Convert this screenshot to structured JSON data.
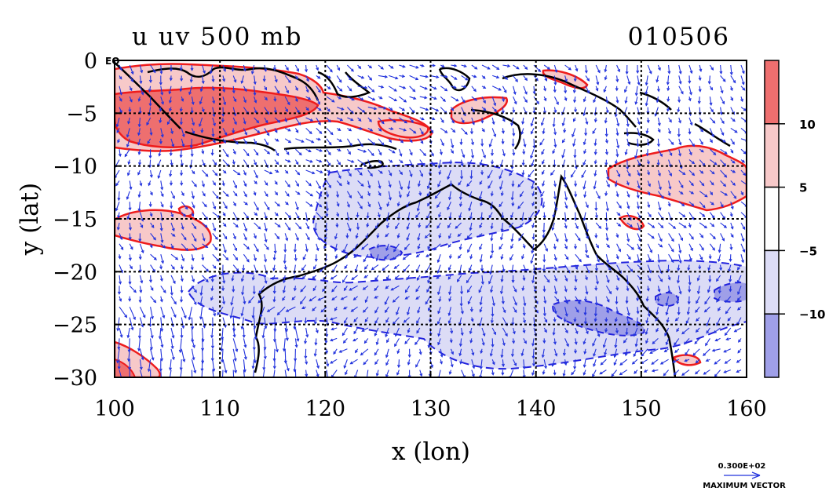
{
  "chart_data": {
    "type": "contour",
    "title": "u uv 500 mb",
    "date_label": "010506",
    "xlabel": "x (lon)",
    "ylabel": "y (lat)",
    "xlim": [
      100,
      160
    ],
    "ylim": [
      -30,
      0
    ],
    "x_ticks": [
      100,
      110,
      120,
      130,
      140,
      150,
      160
    ],
    "y_ticks": [
      0,
      -5,
      -10,
      -15,
      -20,
      -25,
      -30
    ],
    "y_tick_labels": [
      "0",
      "−5",
      "−10",
      "−15",
      "−20",
      "−25",
      "−30"
    ],
    "eq_label": "EQ",
    "grid": true,
    "colorbar": {
      "ticks": [
        10,
        5,
        -5,
        -10
      ],
      "tick_labels": [
        "10",
        "5",
        "−5",
        "−10"
      ],
      "levels": [
        {
          "range": "> 10",
          "color": "#ee6f6f"
        },
        {
          "range": "5 to 10",
          "color": "#f7c9c9"
        },
        {
          "range": "-5 to 5",
          "color": "#ffffff"
        },
        {
          "range": "-10 to -5",
          "color": "#dcdcf6"
        },
        {
          "range": "< -10",
          "color": "#9f9fe8"
        }
      ]
    },
    "positive_contour_color": "#ee1c1c",
    "negative_contour_color": "#2222dd",
    "vector_color": "#2233dd",
    "max_vector": {
      "value": "0.300E+02",
      "label": "MAXIMUM VECTOR"
    }
  }
}
